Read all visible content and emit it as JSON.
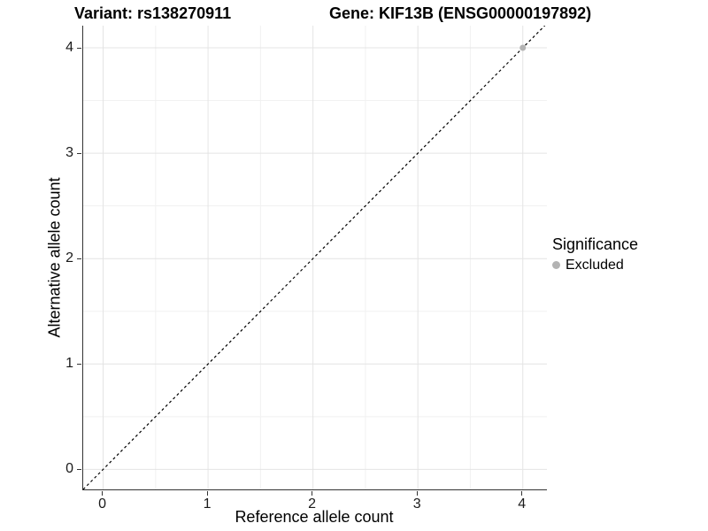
{
  "figure": {
    "title_variant": "Variant: rs138270911",
    "title_gene": "Gene: KIF13B (ENSG00000197892)"
  },
  "legend": {
    "title": "Significance",
    "items": [
      {
        "label": "Excluded",
        "color": "#b3b3b3"
      }
    ]
  },
  "colors": {
    "background": "#ffffff",
    "axis_line": "#333333",
    "tick_mark": "#333333",
    "grid_major": "#e4e4e4",
    "grid_minor": "#f1f1f1",
    "reference_line": "#000000",
    "point_excluded": "#b3b3b3",
    "text": "#000000"
  },
  "chart_data": {
    "type": "scatter",
    "title": "Variant: rs138270911    Gene: KIF13B (ENSG00000197892)",
    "xlabel": "Reference allele count",
    "ylabel": "Alternative allele count",
    "xlim": [
      -0.19,
      4.23
    ],
    "ylim": [
      -0.19,
      4.21
    ],
    "x_ticks": [
      0,
      1,
      2,
      3,
      4
    ],
    "y_ticks": [
      0,
      1,
      2,
      3,
      4
    ],
    "x_minor_ticks": [
      0.5,
      1.5,
      2.5,
      3.5
    ],
    "y_minor_ticks": [
      0.5,
      1.5,
      2.5,
      3.5
    ],
    "grid": true,
    "legend_position": "right",
    "series": [
      {
        "name": "Excluded",
        "color": "#b3b3b3",
        "points": [
          {
            "x": 4,
            "y": 4
          }
        ]
      }
    ],
    "reference_line": {
      "type": "identity",
      "slope": 1,
      "intercept": 0,
      "style": "dashed",
      "color": "#000000"
    }
  }
}
